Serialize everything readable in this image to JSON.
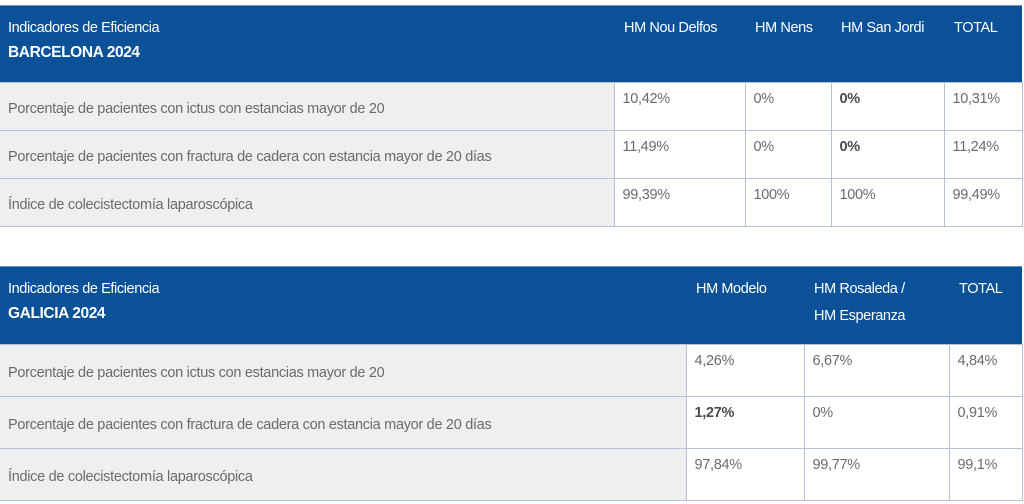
{
  "barcelona": {
    "header_line1": "Indicadores de Eficiencia",
    "header_line2": "BARCELONA 2024",
    "columns": [
      "HM Nou Delfos",
      "HM Nens",
      "HM  San Jordi",
      "TOTAL"
    ],
    "rows": [
      {
        "label": "Porcentaje de pacientes con ictus con estancias mayor de 20",
        "values": [
          "10,42%",
          "0%",
          "0%",
          "10,31%"
        ]
      },
      {
        "label": "Porcentaje de pacientes con fractura de cadera con estancia mayor de 20 días",
        "values": [
          "11,49%",
          "0%",
          "0%",
          "11,24%"
        ]
      },
      {
        "label": "Índice de colecistectomía laparoscópica",
        "values": [
          "99,39%",
          "100%",
          "100%",
          "99,49%"
        ]
      }
    ]
  },
  "galicia": {
    "header_line1": "Indicadores de Eficiencia",
    "header_line2": "GALICIA 2024",
    "columns": [
      {
        "line1": "HM Modelo",
        "line2": ""
      },
      {
        "line1": "HM  Rosaleda /",
        "line2": "HM Esperanza"
      },
      {
        "line1": "TOTAL",
        "line2": ""
      }
    ],
    "rows": [
      {
        "label": "Porcentaje de pacientes con ictus con estancias mayor de 20",
        "values": [
          "4,26%",
          "6,67%",
          "4,84%"
        ]
      },
      {
        "label": "Porcentaje de pacientes con fractura de cadera con estancia mayor de 20 días",
        "values": [
          "1,27%",
          "0%",
          "0,91%"
        ]
      },
      {
        "label": "Índice de colecistectomía laparoscópica",
        "values": [
          "97,84%",
          "99,77%",
          "99,1%"
        ]
      }
    ]
  },
  "colors": {
    "header_bg": "#0a5197",
    "label_bg": "#efefef",
    "border": "#b4c2d4",
    "text": "#6b6b6b"
  }
}
